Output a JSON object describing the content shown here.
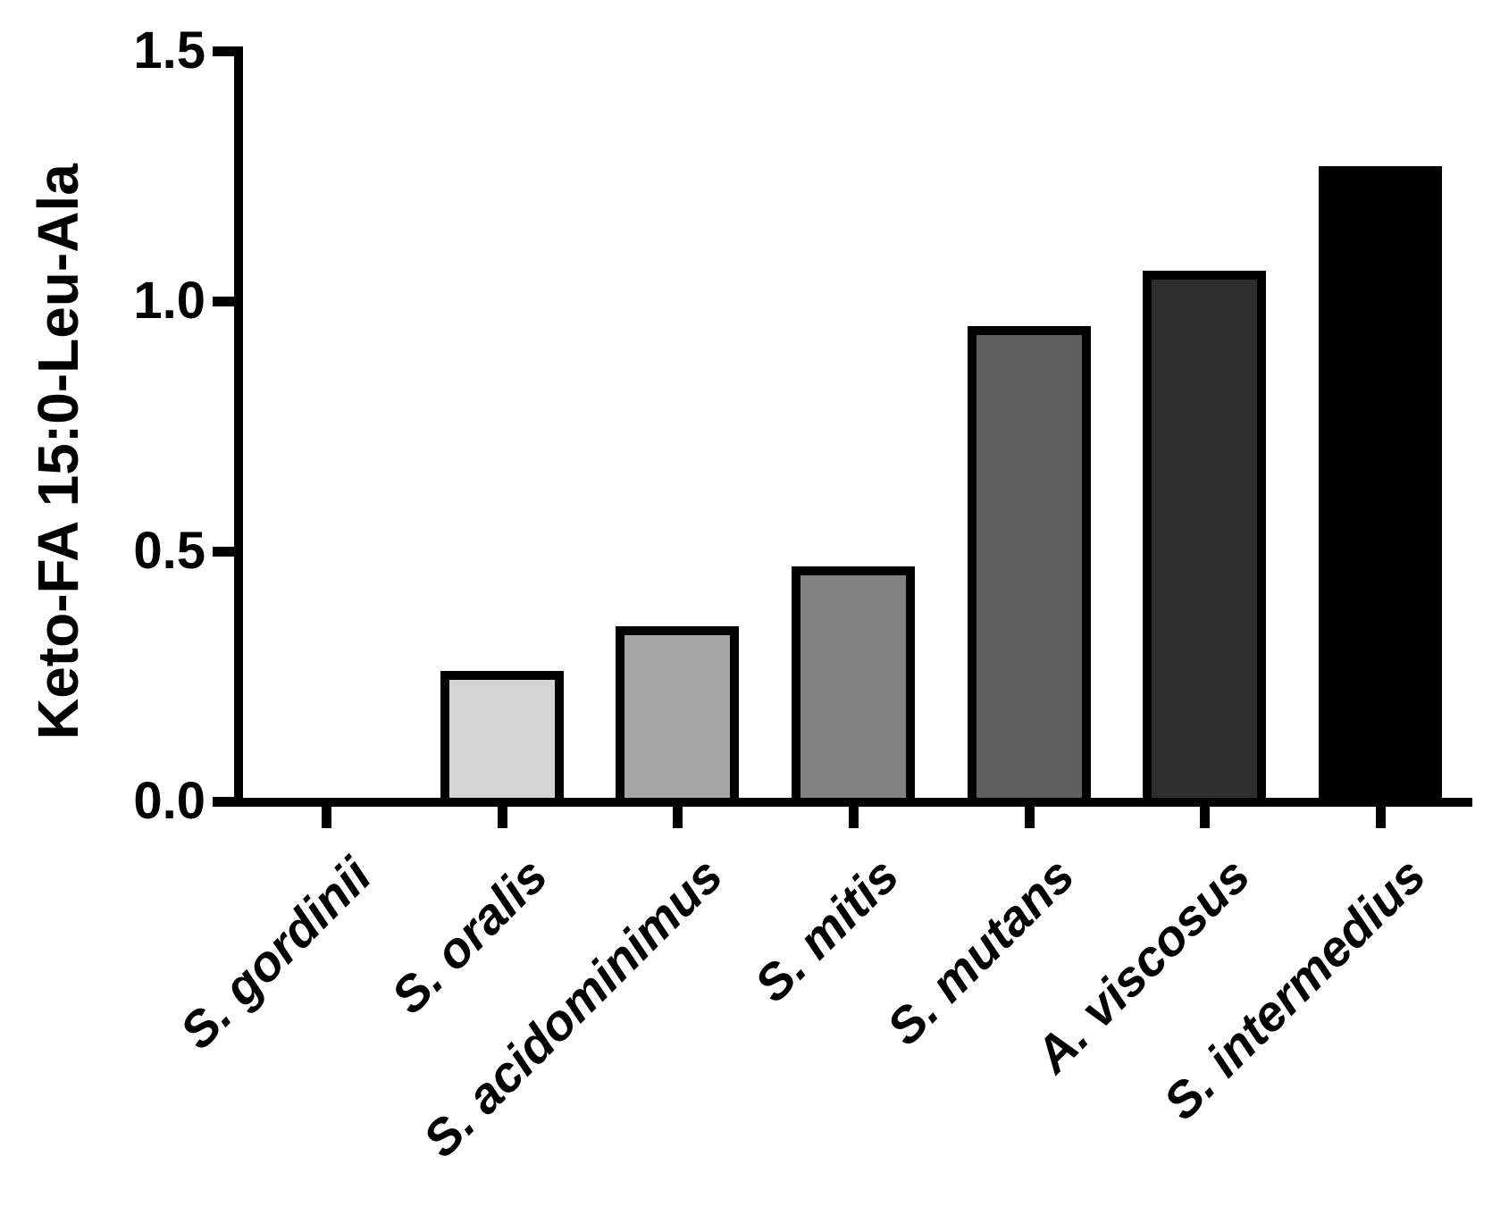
{
  "chart_data": {
    "type": "bar",
    "title": "",
    "xlabel": "",
    "ylabel": "Keto-FA 15:0-Leu-Ala",
    "categories": [
      "S. gordinii",
      "S. oralis",
      "S. acidominimus",
      "S. mitis",
      "S. mutans",
      "A. viscosus",
      "S. intermedius"
    ],
    "values": [
      0,
      0.26,
      0.35,
      0.47,
      0.95,
      1.06,
      1.27
    ],
    "bar_colors": [
      "none",
      "#d4d4d4",
      "#a5a5a5",
      "#828282",
      "#5e5e5e",
      "#2e2e2e",
      "#000000"
    ],
    "bar_outline_color": "#000000",
    "ylim": [
      0,
      1.5
    ],
    "yticks": [
      "0.0",
      "0.5",
      "1.0",
      "1.5"
    ],
    "grid": false,
    "legend_position": "none",
    "axis_color": "#000000",
    "text_color": "#000000",
    "background_color": "#ffffff"
  }
}
